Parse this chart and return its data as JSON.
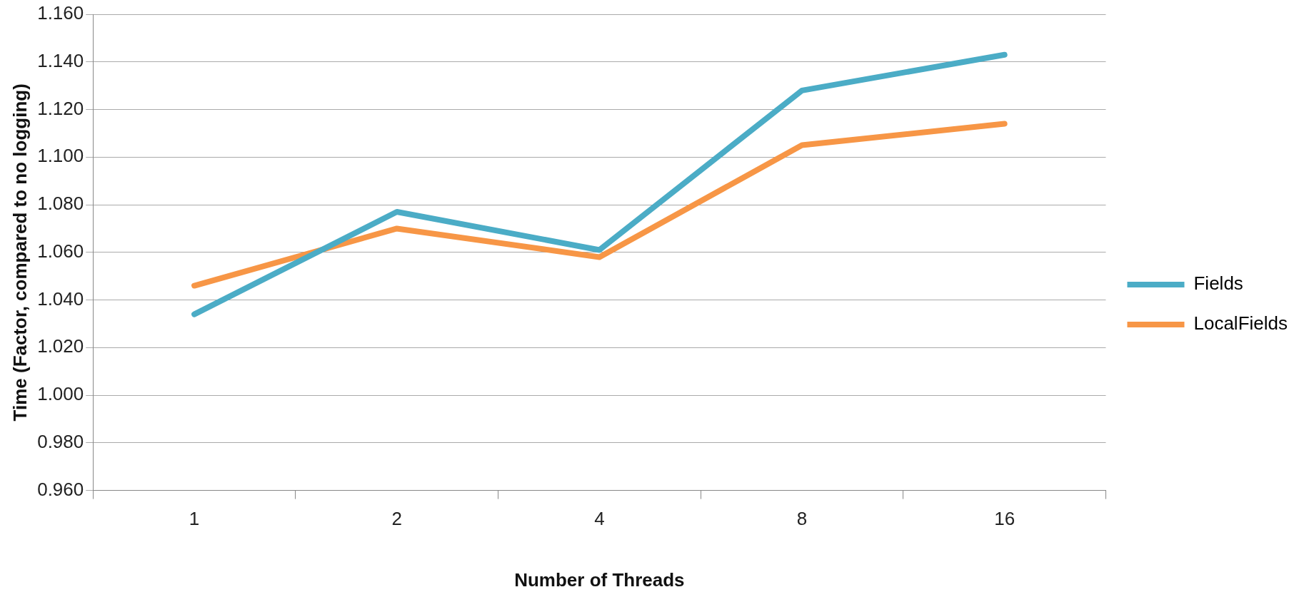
{
  "chart_data": {
    "type": "line",
    "xlabel": "Number of Threads",
    "ylabel": "Time (Factor, compared to no logging)",
    "categories": [
      "1",
      "2",
      "4",
      "8",
      "16"
    ],
    "series": [
      {
        "name": "Fields",
        "color": "#4bacc6",
        "values": [
          1.034,
          1.077,
          1.061,
          1.128,
          1.143
        ]
      },
      {
        "name": "LocalFields",
        "color": "#f79646",
        "values": [
          1.046,
          1.07,
          1.058,
          1.105,
          1.114
        ]
      }
    ],
    "ylim": [
      0.96,
      1.16
    ],
    "yticks": [
      {
        "value": 0.96,
        "label": "0.960"
      },
      {
        "value": 0.98,
        "label": "0.980"
      },
      {
        "value": 1.0,
        "label": "1.000"
      },
      {
        "value": 1.02,
        "label": "1.020"
      },
      {
        "value": 1.04,
        "label": "1.040"
      },
      {
        "value": 1.06,
        "label": "1.060"
      },
      {
        "value": 1.08,
        "label": "1.080"
      },
      {
        "value": 1.1,
        "label": "1.100"
      },
      {
        "value": 1.12,
        "label": "1.120"
      },
      {
        "value": 1.14,
        "label": "1.140"
      },
      {
        "value": 1.16,
        "label": "1.160"
      }
    ],
    "grid": "y",
    "legend": "right",
    "marker": "none",
    "line_style": "solid"
  }
}
